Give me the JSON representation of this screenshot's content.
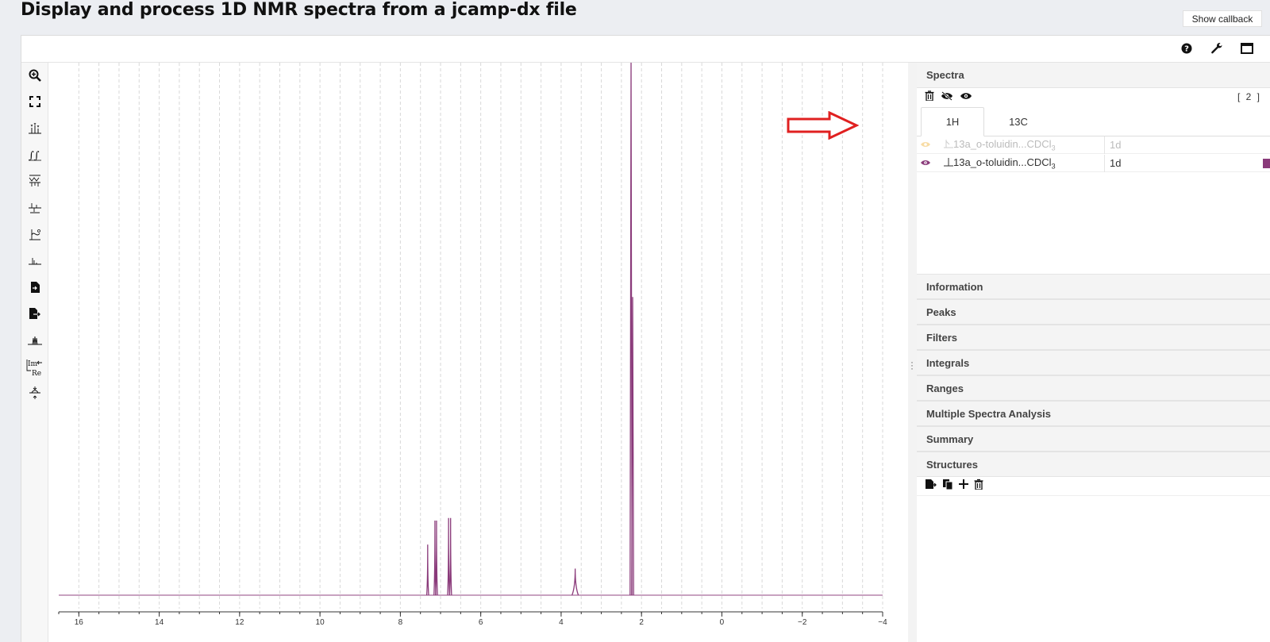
{
  "page": {
    "title": "Display and process 1D NMR spectra from a jcamp-dx file",
    "callback_button": "Show callback"
  },
  "topbar": {
    "icons": [
      "help-icon",
      "wrench-icon",
      "fullscreen-icon"
    ]
  },
  "toolbar": {
    "tools": [
      "zoom-icon",
      "fit-icon",
      "peak-picking-icon",
      "integral-icon",
      "zero-filling-icon",
      "phase-correction-icon",
      "baseline-correction-icon",
      "exclusion-zone-icon",
      "import-icon",
      "export-icon",
      "multiplet-analysis-icon",
      "real-imaginary-icon",
      "apodization-icon"
    ]
  },
  "spectrum": {
    "color": "#8a3a7a",
    "x_ticks": [
      "16",
      "14",
      "12",
      "10",
      "8",
      "6",
      "4",
      "2",
      "0",
      "−2",
      "−4"
    ]
  },
  "panel": {
    "spectra": {
      "header": "Spectra",
      "count": "[ 2 ]",
      "tabs": [
        {
          "label": "1H",
          "active": true
        },
        {
          "label": "13C",
          "active": false
        }
      ],
      "rows": [
        {
          "name_prefix": "13a_o-toluidin...CDCl",
          "name_sub": "3",
          "dim": "1d",
          "visible": false,
          "color": "#f5c36a"
        },
        {
          "name_prefix": "13a_o-toluidin...CDCl",
          "name_sub": "3",
          "dim": "1d",
          "visible": true,
          "color": "#8a3a7a"
        }
      ]
    },
    "sections": [
      "Information",
      "Peaks",
      "Filters",
      "Integrals",
      "Ranges",
      "Multiple Spectra Analysis",
      "Summary",
      "Structures"
    ]
  },
  "chart_data": {
    "type": "line",
    "xlabel": "",
    "ylabel": "",
    "xlim": [
      16.5,
      -4
    ],
    "x_reversed": true,
    "grid": "vertical dashed",
    "peaks": [
      {
        "ppm": 7.32,
        "height": 0.095
      },
      {
        "ppm": 7.14,
        "height": 0.14
      },
      {
        "ppm": 7.1,
        "height": 0.14
      },
      {
        "ppm": 6.8,
        "height": 0.145
      },
      {
        "ppm": 6.75,
        "height": 0.145
      },
      {
        "ppm": 3.65,
        "height": 0.05
      },
      {
        "ppm": 2.26,
        "height": 1.0
      },
      {
        "ppm": 2.22,
        "height": 0.56
      }
    ]
  }
}
